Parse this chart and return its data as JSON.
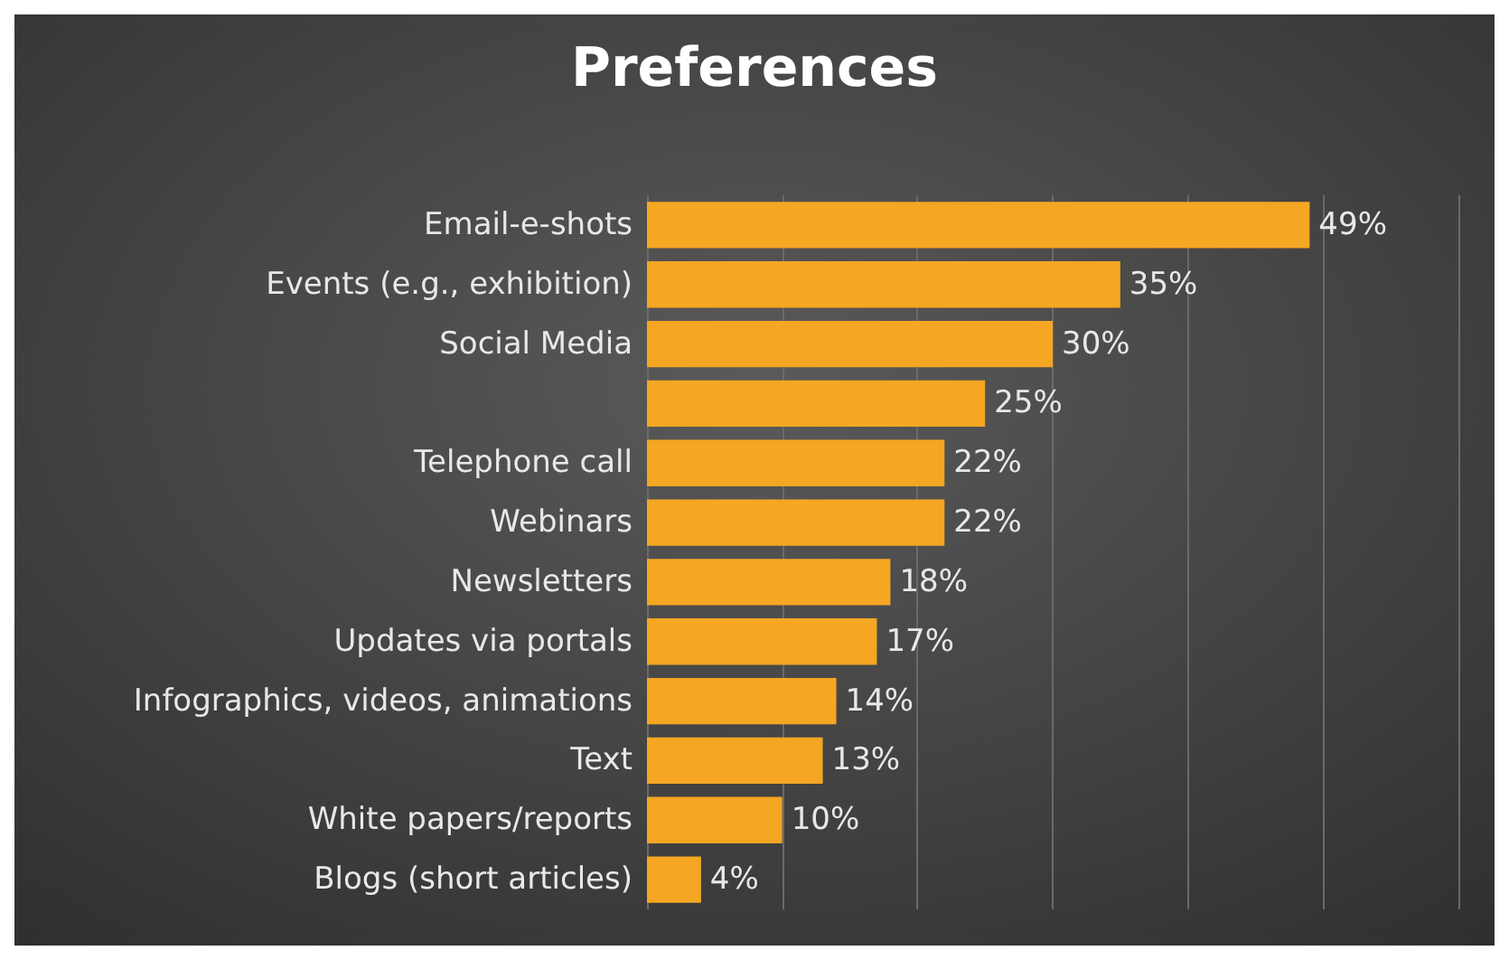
{
  "chart_data": {
    "type": "bar",
    "title": "Preferences",
    "orientation": "horizontal",
    "categories": [
      "Email-e-shots",
      "Events (e.g., exhibition)",
      "Social Media",
      null,
      "Telephone call",
      "Webinars",
      "Newsletters",
      "Updates via portals",
      "Infographics, videos, animations",
      "Text",
      "White papers/reports",
      "Blogs (short articles)"
    ],
    "values": [
      49,
      35,
      30,
      25,
      22,
      22,
      18,
      17,
      14,
      13,
      10,
      4
    ],
    "value_labels": [
      "49%",
      "35%",
      "30%",
      "25%",
      "22%",
      "22%",
      "18%",
      "17%",
      "14%",
      "13%",
      "10%",
      "4%"
    ],
    "color": "#f5a623",
    "xlim": [
      0,
      60
    ],
    "xticks": [
      {
        "value": 0,
        "label": null
      },
      {
        "value": 10,
        "label": null
      },
      {
        "value": 20,
        "label": null
      },
      {
        "value": 30,
        "label": null
      },
      {
        "value": 40,
        "label": null
      },
      {
        "value": 50,
        "label": null
      },
      {
        "value": 60,
        "label": null
      }
    ],
    "grid": "x",
    "tick_labels": "y"
  }
}
